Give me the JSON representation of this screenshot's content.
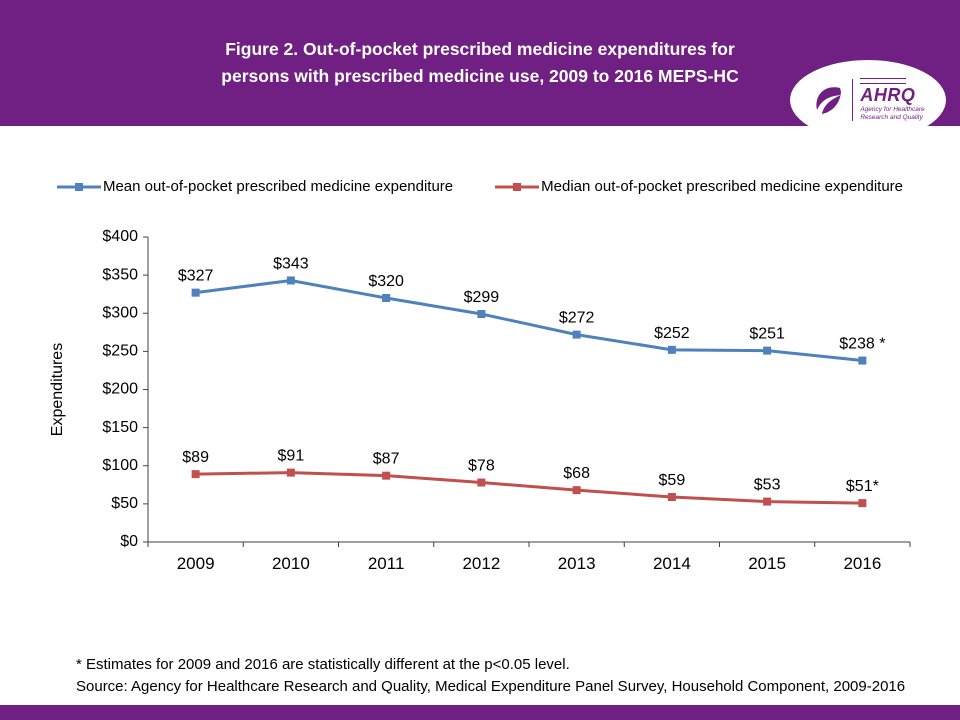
{
  "header": {
    "title_line1": "Figure 2. Out-of-pocket prescribed medicine expenditures for",
    "title_line2": "persons with prescribed medicine use, 2009 to 2016 MEPS-HC"
  },
  "logo": {
    "org": "AHRQ",
    "tagline_line1": "Agency for Healthcare",
    "tagline_line2": "Research and Quality"
  },
  "colors": {
    "brand_purple": "#702082",
    "mean_blue": "#4F81BD",
    "median_red": "#C0504D",
    "axis": "#404040",
    "text": "#000000"
  },
  "chart_data": {
    "type": "line",
    "title": "Figure 2. Out-of-pocket prescribed medicine expenditures for persons with prescribed medicine use, 2009 to 2016 MEPS-HC",
    "categories": [
      "2009",
      "2010",
      "2011",
      "2012",
      "2013",
      "2014",
      "2015",
      "2016"
    ],
    "series": [
      {
        "name": "Mean out-of-pocket prescribed medicine expenditure",
        "color": "#4F81BD",
        "values": [
          327,
          343,
          320,
          299,
          272,
          252,
          251,
          238
        ],
        "labels": [
          "$327",
          "$343",
          "$320",
          "$299",
          "$272",
          "$252",
          "$251",
          "$238 *"
        ]
      },
      {
        "name": "Median out-of-pocket prescribed medicine expenditure",
        "color": "#C0504D",
        "values": [
          89,
          91,
          87,
          78,
          68,
          59,
          53,
          51
        ],
        "labels": [
          "$89",
          "$91",
          "$87",
          "$78",
          "$68",
          "$59",
          "$53",
          "$51*"
        ]
      }
    ],
    "xlabel": "",
    "ylabel": "Expenditures",
    "ylim": [
      0,
      400
    ],
    "ytick_step": 50,
    "ytick_labels": [
      "$0",
      "$50",
      "$100",
      "$150",
      "$200",
      "$250",
      "$300",
      "$350",
      "$400"
    ],
    "grid": false,
    "legend_position": "top",
    "marker": "square"
  },
  "footnotes": {
    "note": "* Estimates for 2009 and 2016 are statistically different at the p<0.05 level.",
    "source": "Source: Agency for Healthcare Research and Quality, Medical Expenditure Panel Survey, Household Component, 2009-2016"
  }
}
